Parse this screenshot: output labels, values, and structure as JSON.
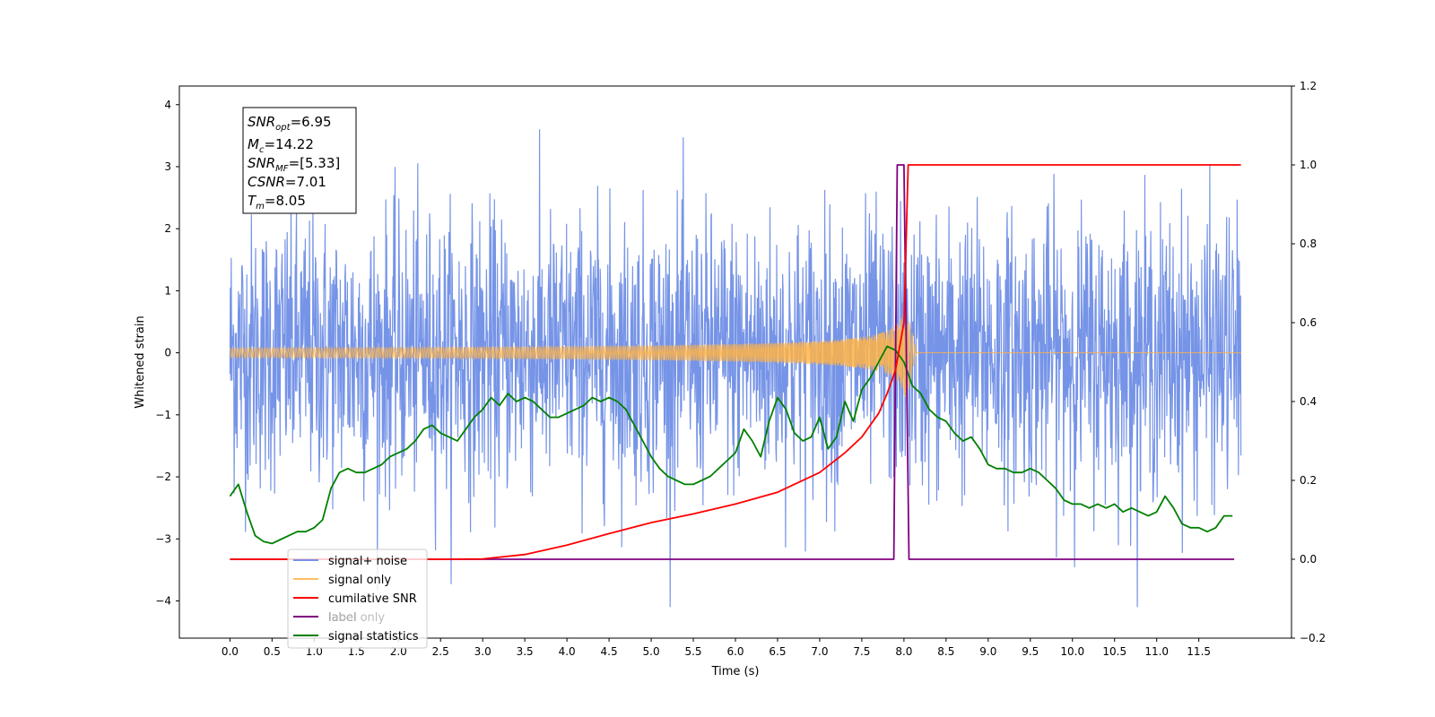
{
  "chart_data": {
    "type": "line",
    "title": "",
    "xlabel": "Time (s)",
    "ylabel": "Whitened strain",
    "y2label": "",
    "xlim": [
      -0.6,
      12.6
    ],
    "ylim": [
      -4.6,
      4.3
    ],
    "y2lim": [
      -0.2,
      1.2
    ],
    "x_ticks": [
      "0.0",
      "0.5",
      "1.0",
      "1.5",
      "2.0",
      "2.5",
      "3.0",
      "3.5",
      "4.0",
      "4.5",
      "5.0",
      "5.5",
      "6.0",
      "6.5",
      "7.0",
      "7.5",
      "8.0",
      "8.5",
      "9.0",
      "9.5",
      "10.0",
      "10.5",
      "11.0",
      "11.5"
    ],
    "y_ticks": [
      "−4",
      "−3",
      "−2",
      "−1",
      "0",
      "1",
      "2",
      "3",
      "4"
    ],
    "y2_ticks": [
      "−0.2",
      "0.0",
      "0.2",
      "0.4",
      "0.6",
      "0.8",
      "1.0",
      "1.2"
    ],
    "grid": false,
    "legend_position": "lower-left",
    "annotation": {
      "snr_opt": "=6.95",
      "mc": "=14.22",
      "snr_mf": "=[5.33]",
      "csnr": "=7.01",
      "tm": "=8.05"
    },
    "series": [
      {
        "name": "signal+ noise",
        "axis": "left",
        "color": "#6f8ee6",
        "description_values": {
          "x_range": [
            0.0,
            12.0
          ],
          "typical_range": [
            -2.6,
            2.6
          ],
          "extremes": [
            -4.1,
            3.9
          ]
        }
      },
      {
        "name": "signal only",
        "axis": "left",
        "color": "#ffb347",
        "chirp": {
          "start": 0.0,
          "merger": 8.05,
          "end": 12.0,
          "peak_amplitude": 0.62
        }
      },
      {
        "name": "cumilative SNR",
        "axis": "right",
        "color": "#ff0000",
        "x": [
          0.0,
          2.5,
          3.0,
          3.5,
          4.0,
          4.5,
          5.0,
          5.5,
          6.0,
          6.5,
          7.0,
          7.3,
          7.5,
          7.7,
          7.8,
          7.9,
          8.0,
          8.05,
          12.0
        ],
        "values": [
          0.0,
          0.0,
          0.001,
          0.012,
          0.036,
          0.065,
          0.093,
          0.115,
          0.14,
          0.17,
          0.22,
          0.27,
          0.31,
          0.37,
          0.42,
          0.48,
          0.6,
          1.0,
          1.0
        ]
      },
      {
        "name": "label",
        "axis": "right",
        "color": "#800080",
        "x": [
          0.0,
          7.88,
          7.92,
          8.0,
          8.06,
          11.92
        ],
        "values": [
          0.0,
          0.0,
          1.0,
          1.0,
          0.0,
          0.0
        ]
      },
      {
        "name": "label only",
        "axis": "right",
        "color": "#800080"
      },
      {
        "name": "signal statistics",
        "axis": "right",
        "color": "#008000",
        "x": [
          0.0,
          0.1,
          0.2,
          0.3,
          0.4,
          0.5,
          0.6,
          0.7,
          0.8,
          0.9,
          1.0,
          1.1,
          1.2,
          1.3,
          1.4,
          1.5,
          1.6,
          1.7,
          1.8,
          1.9,
          2.0,
          2.1,
          2.2,
          2.3,
          2.4,
          2.5,
          2.6,
          2.7,
          2.8,
          2.9,
          3.0,
          3.1,
          3.2,
          3.3,
          3.4,
          3.5,
          3.6,
          3.7,
          3.8,
          3.9,
          4.0,
          4.1,
          4.2,
          4.3,
          4.4,
          4.5,
          4.6,
          4.7,
          4.8,
          4.9,
          5.0,
          5.1,
          5.2,
          5.3,
          5.4,
          5.5,
          5.6,
          5.7,
          5.8,
          5.9,
          6.0,
          6.1,
          6.2,
          6.3,
          6.4,
          6.5,
          6.6,
          6.7,
          6.8,
          6.9,
          7.0,
          7.1,
          7.2,
          7.3,
          7.4,
          7.5,
          7.6,
          7.7,
          7.8,
          7.9,
          8.0,
          8.1,
          8.2,
          8.3,
          8.4,
          8.5,
          8.6,
          8.7,
          8.8,
          8.9,
          9.0,
          9.1,
          9.2,
          9.3,
          9.4,
          9.5,
          9.6,
          9.7,
          9.8,
          9.9,
          10.0,
          10.1,
          10.2,
          10.3,
          10.4,
          10.5,
          10.6,
          10.7,
          10.8,
          10.9,
          11.0,
          11.1,
          11.2,
          11.3,
          11.4,
          11.5,
          11.6,
          11.7,
          11.8,
          11.9
        ],
        "values": [
          0.16,
          0.19,
          0.12,
          0.06,
          0.045,
          0.04,
          0.05,
          0.06,
          0.07,
          0.07,
          0.08,
          0.1,
          0.18,
          0.22,
          0.23,
          0.22,
          0.22,
          0.23,
          0.24,
          0.26,
          0.27,
          0.28,
          0.3,
          0.33,
          0.34,
          0.32,
          0.31,
          0.3,
          0.33,
          0.36,
          0.38,
          0.41,
          0.39,
          0.42,
          0.4,
          0.41,
          0.4,
          0.38,
          0.36,
          0.36,
          0.37,
          0.38,
          0.39,
          0.41,
          0.4,
          0.41,
          0.4,
          0.38,
          0.34,
          0.3,
          0.26,
          0.23,
          0.21,
          0.2,
          0.19,
          0.19,
          0.2,
          0.21,
          0.23,
          0.25,
          0.27,
          0.33,
          0.3,
          0.26,
          0.35,
          0.41,
          0.38,
          0.32,
          0.3,
          0.31,
          0.36,
          0.28,
          0.31,
          0.4,
          0.35,
          0.43,
          0.46,
          0.5,
          0.54,
          0.53,
          0.5,
          0.44,
          0.42,
          0.38,
          0.36,
          0.35,
          0.32,
          0.3,
          0.31,
          0.28,
          0.24,
          0.23,
          0.23,
          0.22,
          0.22,
          0.23,
          0.22,
          0.2,
          0.18,
          0.15,
          0.14,
          0.14,
          0.13,
          0.14,
          0.13,
          0.14,
          0.12,
          0.13,
          0.12,
          0.11,
          0.12,
          0.16,
          0.13,
          0.09,
          0.08,
          0.08,
          0.07,
          0.08,
          0.11,
          0.11
        ]
      }
    ]
  }
}
